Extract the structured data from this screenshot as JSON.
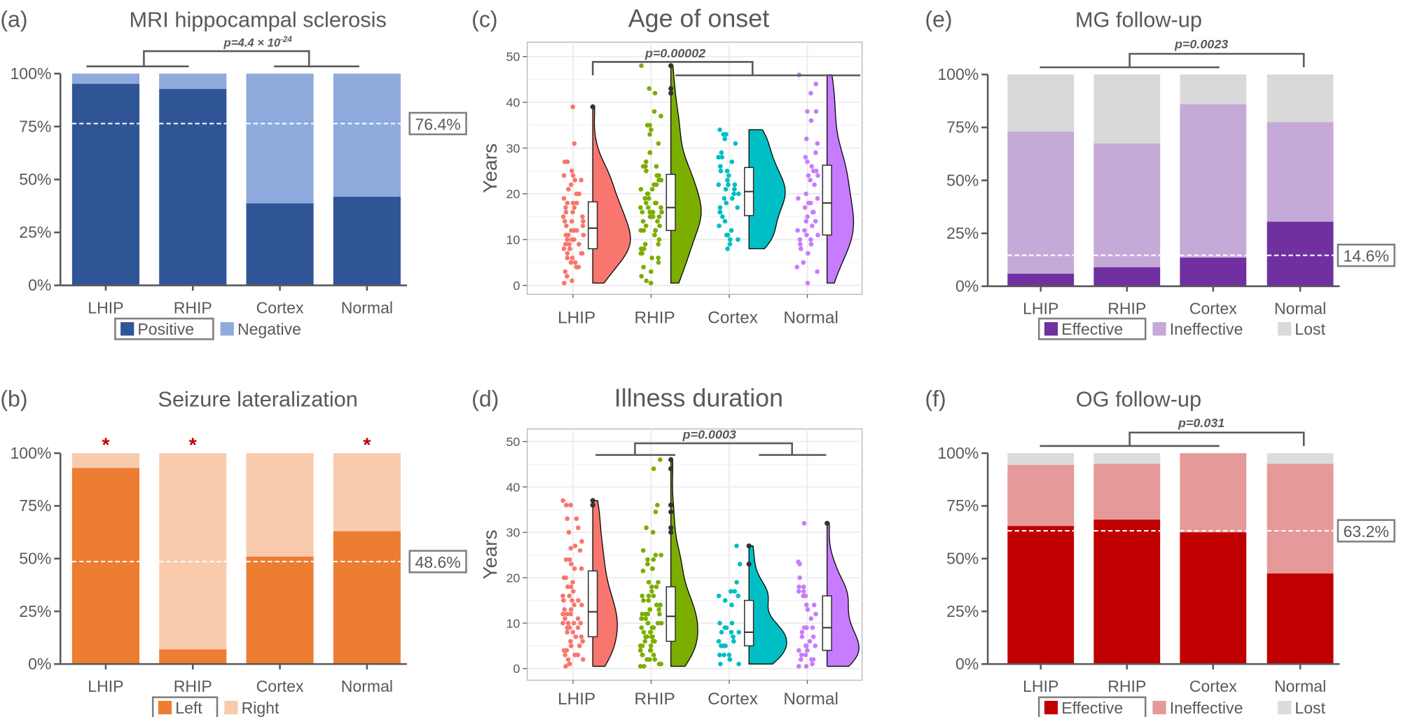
{
  "colors": {
    "text": "#595959",
    "LHIP": "#F8766D",
    "RHIP": "#7CAE00",
    "Cortex": "#00BFC4",
    "Normal": "#C77CFF",
    "outlier": "#333333"
  },
  "chart_data": [
    {
      "panel_label": "(a)",
      "type": "bar",
      "stacked": true,
      "title": "MRI hippocampal sclerosis",
      "categories": [
        "LHIP",
        "RHIP",
        "Cortex",
        "Normal"
      ],
      "ylim": [
        0,
        100
      ],
      "yticks": [
        "0%",
        "25%",
        "50%",
        "75%",
        "100%"
      ],
      "series": [
        {
          "name": "Positive",
          "color": "#2F5597",
          "values": [
            95.2,
            92.8,
            38.7,
            41.9
          ]
        },
        {
          "name": "Negative",
          "color": "#8FAADC",
          "values": [
            4.8,
            7.2,
            61.3,
            58.1
          ]
        }
      ],
      "reference_line": {
        "value": 76.4,
        "label": "76.4%"
      },
      "p_value": {
        "text": "p=4.4 × 10",
        "exponent": "-24"
      },
      "legend_position": "bottom"
    },
    {
      "panel_label": "(b)",
      "type": "bar",
      "stacked": true,
      "title": "Seizure lateralization",
      "categories": [
        "LHIP",
        "RHIP",
        "Cortex",
        "Normal"
      ],
      "ylim": [
        0,
        100
      ],
      "yticks": [
        "0%",
        "25%",
        "50%",
        "75%",
        "100%"
      ],
      "series": [
        {
          "name": "Left",
          "color": "#ED7D31",
          "values": [
            93,
            7,
            51,
            63
          ]
        },
        {
          "name": "Right",
          "color": "#F8CBAD",
          "values": [
            7,
            93,
            49,
            37
          ]
        }
      ],
      "reference_line": {
        "value": 48.6,
        "label": "48.6%"
      },
      "significance": [
        "*",
        "*",
        "",
        "*"
      ],
      "significance_color": "#C00000",
      "legend_position": "bottom"
    },
    {
      "panel_label": "(c)",
      "type": "violin",
      "title": "Age of onset",
      "ylabel": "Years",
      "ylim": [
        0,
        50
      ],
      "yticks": [
        "0",
        "10",
        "20",
        "30",
        "40",
        "50"
      ],
      "categories": [
        "LHIP",
        "RHIP",
        "Cortex",
        "Normal"
      ],
      "p_value": {
        "text": "p=0.00002"
      },
      "groups": [
        {
          "name": "LHIP",
          "values": [
            39,
            31,
            27,
            27,
            25,
            24,
            24,
            23,
            23,
            22,
            21,
            20,
            20,
            19,
            18,
            18,
            18,
            17,
            17,
            16,
            16,
            15,
            15,
            14,
            14,
            14,
            13,
            13,
            12,
            12,
            12,
            11,
            11,
            11,
            10,
            10,
            10,
            9,
            9,
            9,
            8,
            8,
            8,
            7,
            7,
            7,
            6,
            6,
            5,
            5,
            4,
            4,
            3,
            2,
            1,
            0.5
          ],
          "outliers": [
            39
          ]
        },
        {
          "name": "RHIP",
          "values": [
            48,
            43,
            42,
            38,
            37,
            35,
            35,
            34,
            33,
            31,
            29,
            29,
            27,
            26,
            26,
            26,
            25,
            24,
            24,
            23,
            23,
            23,
            22,
            22,
            21,
            21,
            20,
            20,
            19,
            19,
            18,
            18,
            18,
            17,
            17,
            17,
            16,
            16,
            16,
            16,
            15,
            15,
            15,
            15,
            14,
            14,
            13,
            13,
            12,
            12,
            12,
            12,
            11,
            10,
            9,
            9,
            8,
            8,
            7,
            7,
            6,
            6,
            5,
            4,
            3,
            2,
            1,
            0.5
          ],
          "outliers": [
            42,
            43,
            48
          ]
        },
        {
          "name": "Cortex",
          "values": [
            34,
            33,
            33,
            32,
            31,
            29,
            28,
            28,
            27,
            26,
            25,
            25,
            24,
            23,
            22,
            22,
            22,
            21,
            21,
            20,
            20,
            19,
            19,
            18,
            17,
            17,
            16,
            16,
            15,
            14,
            13,
            12,
            11,
            11,
            10,
            10,
            9,
            8
          ],
          "outliers": []
        },
        {
          "name": "Normal",
          "values": [
            46,
            44,
            42,
            38,
            38,
            36,
            32,
            31,
            29,
            28,
            27,
            26,
            25,
            25,
            24,
            24,
            23,
            22,
            20,
            19,
            19,
            18,
            18,
            17,
            16,
            16,
            15,
            14,
            14,
            13,
            12,
            12,
            11,
            11,
            10,
            10,
            9,
            9,
            8,
            7,
            5,
            4,
            3,
            0.5
          ],
          "outliers": []
        }
      ],
      "grid": true
    },
    {
      "panel_label": "(d)",
      "type": "violin",
      "title": "Illness duration",
      "ylabel": "Years",
      "ylim": [
        0,
        50
      ],
      "yticks": [
        "0",
        "10",
        "20",
        "30",
        "40",
        "50"
      ],
      "categories": [
        "LHIP",
        "RHIP",
        "Cortex",
        "Normal"
      ],
      "p_value": {
        "text": "p=0.0003"
      },
      "groups": [
        {
          "name": "LHIP",
          "values": [
            37,
            36,
            36,
            33,
            33,
            31,
            30,
            28,
            27,
            26.5,
            26,
            24,
            24,
            23,
            22,
            22,
            20,
            20,
            19,
            18,
            18,
            17,
            16,
            16,
            15,
            15,
            15,
            14,
            14,
            13,
            13,
            12,
            12,
            12,
            11,
            11,
            10,
            10,
            10,
            10,
            9,
            9,
            9,
            8,
            8,
            7,
            7,
            6,
            6,
            6,
            5,
            5,
            4,
            4,
            3,
            3,
            3,
            2,
            2,
            1,
            1,
            0.5
          ],
          "outliers": [
            36,
            37
          ]
        },
        {
          "name": "RHIP",
          "values": [
            46,
            44,
            36,
            34.5,
            31,
            30,
            26,
            25,
            25,
            24,
            24,
            23,
            22,
            22,
            21.5,
            19,
            19,
            18,
            18,
            17,
            16,
            16,
            16,
            15,
            15,
            14,
            14,
            14,
            13,
            13,
            13,
            12,
            12,
            12,
            12,
            11,
            11,
            10,
            10,
            10,
            10,
            9,
            9,
            9,
            8,
            8,
            8,
            7,
            7,
            7,
            7,
            6,
            6,
            6,
            5,
            5,
            5,
            4,
            4,
            4,
            3,
            3,
            3,
            2,
            2,
            2,
            1,
            1,
            0.5,
            0.5
          ],
          "outliers": [
            30,
            31,
            34.5,
            36,
            44,
            46
          ]
        },
        {
          "name": "Cortex",
          "values": [
            27,
            23,
            19,
            17,
            17,
            16,
            16,
            15,
            14,
            10,
            10,
            9,
            9,
            8,
            8,
            8,
            7,
            6,
            6,
            5,
            5,
            5,
            3,
            3,
            3,
            2,
            2,
            1,
            1
          ],
          "outliers": [
            23,
            27
          ]
        },
        {
          "name": "Normal",
          "values": [
            32,
            23.5,
            23,
            20,
            18,
            18,
            17,
            17,
            16,
            16,
            14,
            14,
            13,
            12,
            11,
            9,
            9,
            9,
            8,
            7,
            7,
            6,
            5,
            5,
            5,
            4,
            4,
            3,
            3,
            2,
            2,
            2,
            1,
            0.5,
            0.5
          ],
          "outliers": [
            32
          ]
        }
      ],
      "grid": true
    },
    {
      "panel_label": "(e)",
      "type": "bar",
      "stacked": true,
      "title": "MG follow-up",
      "categories": [
        "LHIP",
        "RHIP",
        "Cortex",
        "Normal"
      ],
      "ylim": [
        0,
        100
      ],
      "yticks": [
        "0%",
        "25%",
        "50%",
        "75%",
        "100%"
      ],
      "series": [
        {
          "name": "Effective",
          "color": "#7030A0",
          "values": [
            6,
            9,
            13.5,
            30.5
          ]
        },
        {
          "name": "Ineffective",
          "color": "#C5AAD8",
          "values": [
            67,
            58.5,
            72.5,
            47
          ]
        },
        {
          "name": "Lost",
          "color": "#D9D9D9",
          "values": [
            27,
            32.5,
            14,
            22.5
          ]
        }
      ],
      "reference_line": {
        "value": 14.6,
        "label": "14.6%"
      },
      "p_value": {
        "text": "p=0.0023"
      },
      "legend_position": "bottom"
    },
    {
      "panel_label": "(f)",
      "type": "bar",
      "stacked": true,
      "title": "OG follow-up",
      "categories": [
        "LHIP",
        "RHIP",
        "Cortex",
        "Normal"
      ],
      "ylim": [
        0,
        100
      ],
      "yticks": [
        "0%",
        "25%",
        "50%",
        "75%",
        "100%"
      ],
      "series": [
        {
          "name": "Effective",
          "color": "#C00000",
          "values": [
            65.5,
            68.5,
            62.5,
            43
          ]
        },
        {
          "name": "Ineffective",
          "color": "#E59999",
          "values": [
            29,
            26.5,
            37.5,
            52
          ]
        },
        {
          "name": "Lost",
          "color": "#DCDCDC",
          "values": [
            5.5,
            5,
            0,
            5
          ]
        }
      ],
      "reference_line": {
        "value": 63.2,
        "label": "63.2%"
      },
      "p_value": {
        "text": "p=0.031"
      },
      "legend_position": "bottom"
    }
  ]
}
